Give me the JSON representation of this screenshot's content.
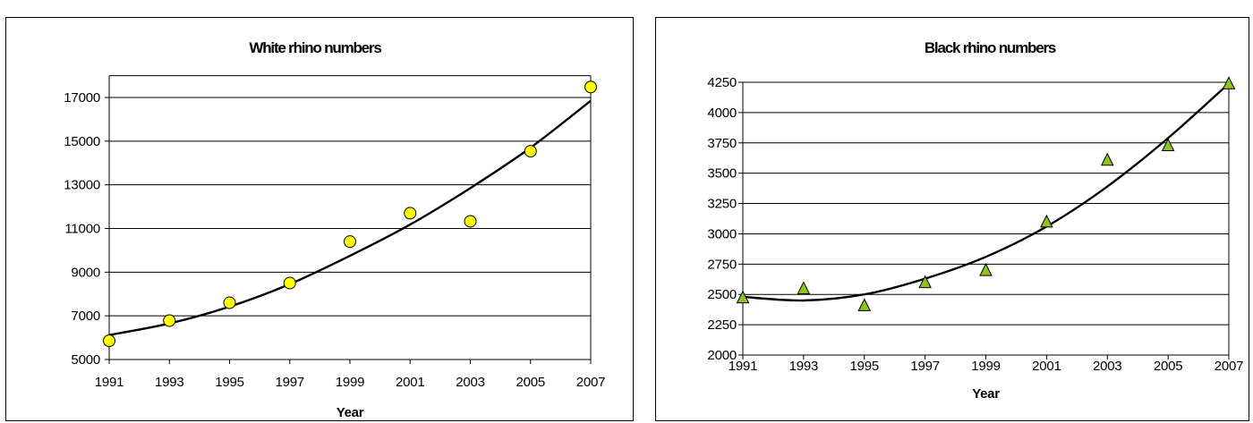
{
  "chart_data": [
    {
      "type": "scatter",
      "title": "White rhino numbers",
      "xlabel": "Year",
      "ylabel": "",
      "xlim": [
        1991,
        2007
      ],
      "ylim": [
        5000,
        18000
      ],
      "yticks": [
        5000,
        7000,
        9000,
        11000,
        13000,
        15000,
        17000
      ],
      "xticks": [
        1991,
        1993,
        1995,
        1997,
        1999,
        2001,
        2003,
        2005,
        2007
      ],
      "grid": "horizontal",
      "legend": "none",
      "marker": "circle",
      "marker_color": "#ffff00",
      "series": [
        {
          "x": [
            1991,
            1993,
            1995,
            1997,
            1999,
            2001,
            2003,
            2005,
            2007
          ],
          "y": [
            5860,
            6780,
            7600,
            8500,
            10400,
            11700,
            11330,
            14540,
            17480
          ]
        }
      ],
      "trendline": {
        "x": [
          1991,
          1993,
          1995,
          1997,
          1999,
          2001,
          2003,
          2005,
          2007
        ],
        "y": [
          6120,
          6650,
          7420,
          8450,
          9750,
          11180,
          12850,
          14700,
          16850
        ]
      }
    },
    {
      "type": "scatter",
      "title": "Black rhino numbers",
      "xlabel": "Year",
      "ylabel": "",
      "xlim": [
        1991,
        2007
      ],
      "ylim": [
        2000,
        4250
      ],
      "yticks": [
        2000,
        2250,
        2500,
        2750,
        3000,
        3250,
        3500,
        3750,
        4000,
        4250
      ],
      "xticks": [
        1991,
        1993,
        1995,
        1997,
        1999,
        2001,
        2003,
        2005,
        2007
      ],
      "grid": "horizontal",
      "legend": "none",
      "marker": "triangle",
      "marker_color": "#8dc21f",
      "series": [
        {
          "x": [
            1991,
            1993,
            1995,
            1997,
            1999,
            2001,
            2003,
            2005,
            2007
          ],
          "y": [
            2475,
            2550,
            2410,
            2600,
            2700,
            3100,
            3610,
            3730,
            4240
          ]
        }
      ],
      "trendline": {
        "x": [
          1991,
          1993,
          1995,
          1997,
          1999,
          2001,
          2003,
          2005,
          2007
        ],
        "y": [
          2480,
          2450,
          2500,
          2630,
          2810,
          3060,
          3390,
          3790,
          4240
        ]
      }
    }
  ]
}
